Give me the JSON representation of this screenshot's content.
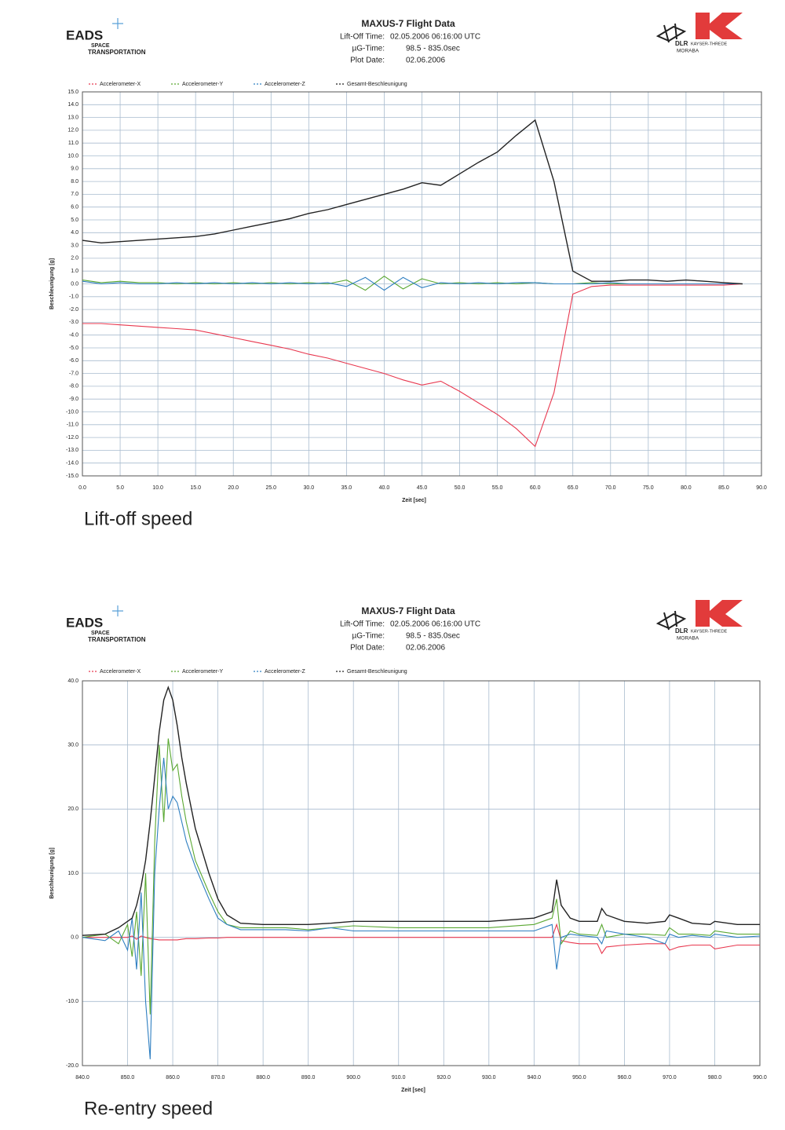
{
  "chart_data": [
    {
      "type": "line",
      "title": "MAXUS-7 Flight Data",
      "info": [
        [
          "Lift-Off Time:",
          "02.05.2006 06:16:00 UTC"
        ],
        [
          "µG-Time:",
          "98.5 - 835.0sec"
        ],
        [
          "Plot Date:",
          "02.06.2006"
        ]
      ],
      "logos": {
        "left": [
          "EADS",
          "SPACE",
          "TRANSPORTATION"
        ],
        "right": [
          "DLR",
          "KAYSER-THREDE",
          "MORABA"
        ]
      },
      "x_label": "Zeit [sec]",
      "y_label": "Beschleunigung [g]",
      "caption": "Lift-off speed",
      "grid": true,
      "x": [
        0,
        2.5,
        5,
        7.5,
        10,
        12.5,
        15,
        17.5,
        20,
        22.5,
        25,
        27.5,
        30,
        32.5,
        35,
        37.5,
        40,
        42.5,
        45,
        47.5,
        50,
        52.5,
        55,
        57.5,
        60,
        62.5,
        65,
        67.5,
        70,
        72.5,
        75,
        77.5,
        80,
        82.5,
        85,
        87.5
      ],
      "series": [
        {
          "name": "Accelerometer-X",
          "color": "#e8384f",
          "values": [
            -3.1,
            -3.1,
            -3.2,
            -3.3,
            -3.4,
            -3.5,
            -3.6,
            -3.9,
            -4.2,
            -4.5,
            -4.8,
            -5.1,
            -5.5,
            -5.8,
            -6.2,
            -6.6,
            -7.0,
            -7.5,
            -7.9,
            -7.6,
            -8.4,
            -9.3,
            -10.2,
            -11.3,
            -12.7,
            -8.5,
            -0.8,
            -0.2,
            -0.1,
            -0.1,
            -0.1,
            -0.1,
            -0.1,
            -0.1,
            -0.1,
            0.0
          ]
        },
        {
          "name": "Accelerometer-Y",
          "color": "#5aa832",
          "values": [
            0.3,
            0.1,
            0.2,
            0.1,
            0.1,
            0.0,
            0.1,
            0.0,
            0.1,
            0.0,
            0.1,
            0.0,
            0.1,
            0.0,
            0.3,
            -0.5,
            0.6,
            -0.4,
            0.4,
            0.0,
            0.1,
            0.0,
            0.1,
            0.0,
            0.1,
            0.0,
            0.0,
            0.1,
            0.0,
            0.0,
            0.0,
            0.0,
            0.0,
            0.0,
            0.0,
            0.0
          ]
        },
        {
          "name": "Accelerometer-Z",
          "color": "#2f7fc1",
          "values": [
            0.2,
            0.0,
            0.1,
            0.0,
            0.0,
            0.1,
            0.0,
            0.1,
            0.0,
            0.1,
            0.0,
            0.1,
            0.0,
            0.1,
            -0.2,
            0.5,
            -0.5,
            0.5,
            -0.3,
            0.1,
            0.0,
            0.1,
            0.0,
            0.1,
            0.1,
            0.0,
            0.0,
            0.0,
            0.1,
            0.0,
            0.0,
            0.0,
            0.0,
            0.0,
            0.0,
            0.0
          ]
        },
        {
          "name": "Gesamt-Beschleunigung",
          "color": "#222222",
          "values": [
            3.4,
            3.2,
            3.3,
            3.4,
            3.5,
            3.6,
            3.7,
            3.9,
            4.2,
            4.5,
            4.8,
            5.1,
            5.5,
            5.8,
            6.2,
            6.6,
            7.0,
            7.4,
            7.9,
            7.7,
            8.6,
            9.5,
            10.3,
            11.6,
            12.8,
            8.0,
            1.0,
            0.2,
            0.2,
            0.3,
            0.3,
            0.2,
            0.3,
            0.2,
            0.1,
            0.0
          ]
        }
      ],
      "xlim": [
        0,
        90
      ],
      "xticks": [
        {
          "value": 0,
          "label": "0.0"
        },
        {
          "value": 5,
          "label": "5.0"
        },
        {
          "value": 10,
          "label": "10.0"
        },
        {
          "value": 15,
          "label": "15.0"
        },
        {
          "value": 20,
          "label": "20.0"
        },
        {
          "value": 25,
          "label": "25.0"
        },
        {
          "value": 30,
          "label": "30.0"
        },
        {
          "value": 35,
          "label": "35.0"
        },
        {
          "value": 40,
          "label": "40.0"
        },
        {
          "value": 45,
          "label": "45.0"
        },
        {
          "value": 50,
          "label": "50.0"
        },
        {
          "value": 55,
          "label": "55.0"
        },
        {
          "value": 60,
          "label": "60.0"
        },
        {
          "value": 65,
          "label": "65.0"
        },
        {
          "value": 70,
          "label": "70.0"
        },
        {
          "value": 75,
          "label": "75.0"
        },
        {
          "value": 80,
          "label": "80.0"
        },
        {
          "value": 85,
          "label": "85.0"
        },
        {
          "value": 90,
          "label": "90.0"
        }
      ],
      "ylim": [
        -15,
        15
      ],
      "yticks": [
        {
          "value": 15,
          "label": "15.0"
        },
        {
          "value": 14,
          "label": "14.0"
        },
        {
          "value": 13,
          "label": "13.0"
        },
        {
          "value": 12,
          "label": "12.0"
        },
        {
          "value": 11,
          "label": "11.0"
        },
        {
          "value": 10,
          "label": "10.0"
        },
        {
          "value": 9,
          "label": "9.0"
        },
        {
          "value": 8,
          "label": "8.0"
        },
        {
          "value": 7,
          "label": "7.0"
        },
        {
          "value": 6,
          "label": "6.0"
        },
        {
          "value": 5,
          "label": "5.0"
        },
        {
          "value": 4,
          "label": "4.0"
        },
        {
          "value": 3,
          "label": "3.0"
        },
        {
          "value": 2,
          "label": "2.0"
        },
        {
          "value": 1,
          "label": "1.0"
        },
        {
          "value": 0,
          "label": "0.0"
        },
        {
          "value": -1,
          "label": "-1.0"
        },
        {
          "value": -2,
          "label": "-2.0"
        },
        {
          "value": -3,
          "label": "-3.0"
        },
        {
          "value": -4,
          "label": "-4.0"
        },
        {
          "value": -5,
          "label": "-5.0"
        },
        {
          "value": -6,
          "label": "-6.0"
        },
        {
          "value": -7,
          "label": "-7.0"
        },
        {
          "value": -8,
          "label": "-8.0"
        },
        {
          "value": -9,
          "label": "-9.0"
        },
        {
          "value": -10,
          "label": "-10.0"
        },
        {
          "value": -11,
          "label": "-11.0"
        },
        {
          "value": -12,
          "label": "-12.0"
        },
        {
          "value": -13,
          "label": "-13.0"
        },
        {
          "value": -14,
          "label": "-14.0"
        },
        {
          "value": -15,
          "label": "-15.0"
        }
      ]
    },
    {
      "type": "line",
      "title": "MAXUS-7 Flight Data",
      "info": [
        [
          "Lift-Off Time:",
          "02.05.2006 06:16:00 UTC"
        ],
        [
          "µG-Time:",
          "98.5 - 835.0sec"
        ],
        [
          "Plot Date:",
          "02.06.2006"
        ]
      ],
      "logos": {
        "left": [
          "EADS",
          "SPACE",
          "TRANSPORTATION"
        ],
        "right": [
          "DLR",
          "KAYSER-THREDE",
          "MORABA"
        ]
      },
      "x_label": "Zeit [sec]",
      "y_label": "Beschleunigung [g]",
      "caption": "Re-entry speed",
      "grid": true,
      "x": [
        840,
        845,
        848,
        850,
        851,
        852,
        853,
        854,
        855,
        856,
        857,
        858,
        859,
        860,
        861,
        862,
        863,
        865,
        868,
        870,
        872,
        875,
        880,
        885,
        890,
        895,
        900,
        910,
        920,
        930,
        940,
        944,
        945,
        946,
        948,
        950,
        954,
        955,
        956,
        960,
        965,
        969,
        970,
        972,
        975,
        979,
        980,
        985,
        990
      ],
      "series": [
        {
          "name": "Accelerometer-X",
          "color": "#e8384f",
          "values": [
            0,
            0,
            0,
            0,
            0.2,
            -0.3,
            0.2,
            0,
            -0.2,
            -0.3,
            -0.4,
            -0.4,
            -0.4,
            -0.4,
            -0.4,
            -0.3,
            -0.2,
            -0.2,
            -0.1,
            -0.1,
            0,
            0,
            0,
            0,
            0,
            0,
            0,
            0,
            0,
            0,
            0,
            0,
            2,
            -0.5,
            -0.8,
            -1.0,
            -1.0,
            -2.5,
            -1.5,
            -1.2,
            -1.0,
            -1.0,
            -2,
            -1.5,
            -1.2,
            -1.2,
            -1.8,
            -1.2,
            -1.2
          ]
        },
        {
          "name": "Accelerometer-Y",
          "color": "#5aa832",
          "values": [
            0,
            0.5,
            -1,
            2,
            -3,
            4,
            -6,
            10,
            -12,
            15,
            30,
            18,
            31,
            26,
            27,
            22,
            18,
            12,
            7,
            4,
            2,
            1.5,
            1.5,
            1.5,
            1.2,
            1.5,
            1.8,
            1.5,
            1.5,
            1.5,
            2,
            3,
            6,
            -1,
            1,
            0.5,
            0.3,
            2,
            0,
            0.5,
            0.5,
            0.3,
            1.5,
            0.5,
            0.5,
            0.3,
            1,
            0.5,
            0.5
          ]
        },
        {
          "name": "Accelerometer-Z",
          "color": "#2f7fc1",
          "values": [
            0,
            -0.5,
            1,
            -2,
            3,
            -5,
            7,
            -10,
            -19,
            10,
            20,
            28,
            20,
            22,
            21,
            18,
            15,
            11,
            6,
            3,
            2,
            1.2,
            1.2,
            1.2,
            1,
            1.5,
            1,
            1,
            1,
            1,
            1,
            2,
            -5,
            0,
            0.5,
            0.3,
            0,
            -1,
            1,
            0.5,
            0,
            -1,
            0.5,
            0,
            0.3,
            0,
            0.5,
            0,
            0.2
          ]
        },
        {
          "name": "Gesamt-Beschleunigung",
          "color": "#222222",
          "values": [
            0.3,
            0.5,
            1.5,
            2.5,
            3,
            5,
            8,
            12,
            18,
            25,
            32,
            37,
            39,
            37,
            33,
            28,
            24,
            17,
            10,
            6,
            3.5,
            2.2,
            2,
            2,
            2,
            2.2,
            2.5,
            2.5,
            2.5,
            2.5,
            3,
            4,
            9,
            5,
            3,
            2.5,
            2.5,
            4.5,
            3.5,
            2.5,
            2.2,
            2.5,
            3.5,
            3,
            2.2,
            2,
            2.5,
            2,
            2
          ]
        }
      ],
      "xlim": [
        840,
        990
      ],
      "xticks": [
        {
          "value": 840,
          "label": "840.0"
        },
        {
          "value": 850,
          "label": "850.0"
        },
        {
          "value": 860,
          "label": "860.0"
        },
        {
          "value": 870,
          "label": "870.0"
        },
        {
          "value": 880,
          "label": "880.0"
        },
        {
          "value": 890,
          "label": "890.0"
        },
        {
          "value": 900,
          "label": "900.0"
        },
        {
          "value": 910,
          "label": "910.0"
        },
        {
          "value": 920,
          "label": "920.0"
        },
        {
          "value": 930,
          "label": "930.0"
        },
        {
          "value": 940,
          "label": "940.0"
        },
        {
          "value": 950,
          "label": "950.0"
        },
        {
          "value": 960,
          "label": "960.0"
        },
        {
          "value": 970,
          "label": "970.0"
        },
        {
          "value": 980,
          "label": "980.0"
        },
        {
          "value": 990,
          "label": "990.0"
        }
      ],
      "ylim": [
        -20,
        40
      ],
      "yticks": [
        {
          "value": 40,
          "label": "40.0"
        },
        {
          "value": 30,
          "label": "30.0"
        },
        {
          "value": 20,
          "label": "20.0"
        },
        {
          "value": 10,
          "label": "10.0"
        },
        {
          "value": 0,
          "label": "0.0"
        },
        {
          "value": -10,
          "label": "-10.0"
        },
        {
          "value": -20,
          "label": "-20.0"
        }
      ]
    }
  ]
}
